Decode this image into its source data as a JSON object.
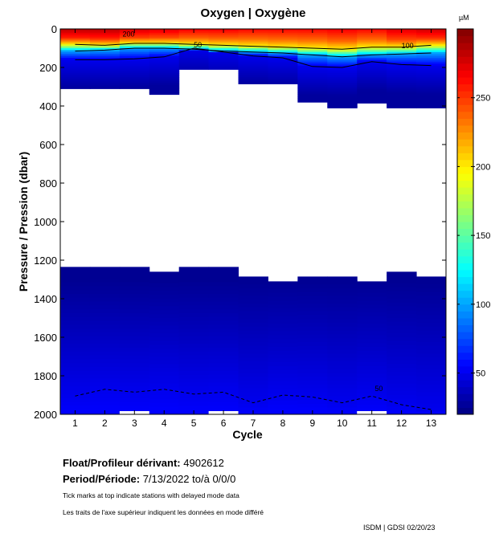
{
  "chart_data": {
    "type": "heatmap",
    "title": "Oxygen | Oxygène",
    "xlabel": "Cycle",
    "ylabel": "Pressure / Pression (dbar)",
    "colorbar_label": "µM",
    "colorbar_ticks": [
      50,
      100,
      150,
      200,
      250
    ],
    "colorbar_range": [
      20,
      300
    ],
    "xlim": [
      0.5,
      13.5
    ],
    "ylim": [
      2000,
      0
    ],
    "x_ticks": [
      1,
      2,
      3,
      4,
      5,
      6,
      7,
      8,
      9,
      10,
      11,
      12,
      13
    ],
    "y_ticks": [
      0,
      200,
      400,
      600,
      800,
      1000,
      1200,
      1400,
      1600,
      1800,
      2000
    ],
    "cycles": [
      1,
      2,
      3,
      4,
      5,
      6,
      7,
      8,
      9,
      10,
      11,
      12,
      13
    ],
    "surface_o2": [
      285,
      285,
      278,
      275,
      268,
      268,
      265,
      265,
      265,
      268,
      265,
      275,
      280
    ],
    "depth_o2_200": [
      80,
      85,
      75,
      75,
      80,
      85,
      90,
      95,
      100,
      105,
      95,
      95,
      85
    ],
    "depth_o2_100": [
      115,
      110,
      100,
      100,
      105,
      115,
      120,
      125,
      135,
      145,
      135,
      130,
      125
    ],
    "depth_o2_50": [
      160,
      160,
      155,
      145,
      100,
      120,
      140,
      150,
      195,
      200,
      170,
      185,
      190
    ],
    "deep_depth_o2_50": [
      1905,
      1870,
      1885,
      1870,
      1895,
      1885,
      1940,
      1900,
      1910,
      1940,
      1905,
      1950,
      1975
    ],
    "upper_data_bottom": [
      310,
      310,
      310,
      340,
      210,
      210,
      285,
      285,
      380,
      410,
      385,
      410,
      410
    ],
    "lower_data_top": [
      1235,
      1235,
      1235,
      1260,
      1235,
      1235,
      1285,
      1310,
      1285,
      1285,
      1310,
      1260,
      1285
    ],
    "bottom_gaps_cycles": [
      3,
      6,
      11
    ],
    "contour_labels": [
      {
        "text": "200",
        "cycle": 2.6,
        "pressure": 40
      },
      {
        "text": "50",
        "cycle": 5.0,
        "pressure": 95
      },
      {
        "text": "100",
        "cycle": 12.0,
        "pressure": 100
      },
      {
        "text": "50",
        "cycle": 11.1,
        "pressure": 1880
      }
    ]
  },
  "info": {
    "float_label": "Float/Profileur dérivant:",
    "float_value": "4902612",
    "period_label": "Period/Période:",
    "period_value": "7/13/2022  to/à  0/0/0",
    "note_en": "Tick marks at top indicate stations with delayed mode data",
    "note_fr": "Les traits de l'axe supérieur indiquent les données en mode différé",
    "credit": "ISDM | GDSI  02/20/23"
  }
}
